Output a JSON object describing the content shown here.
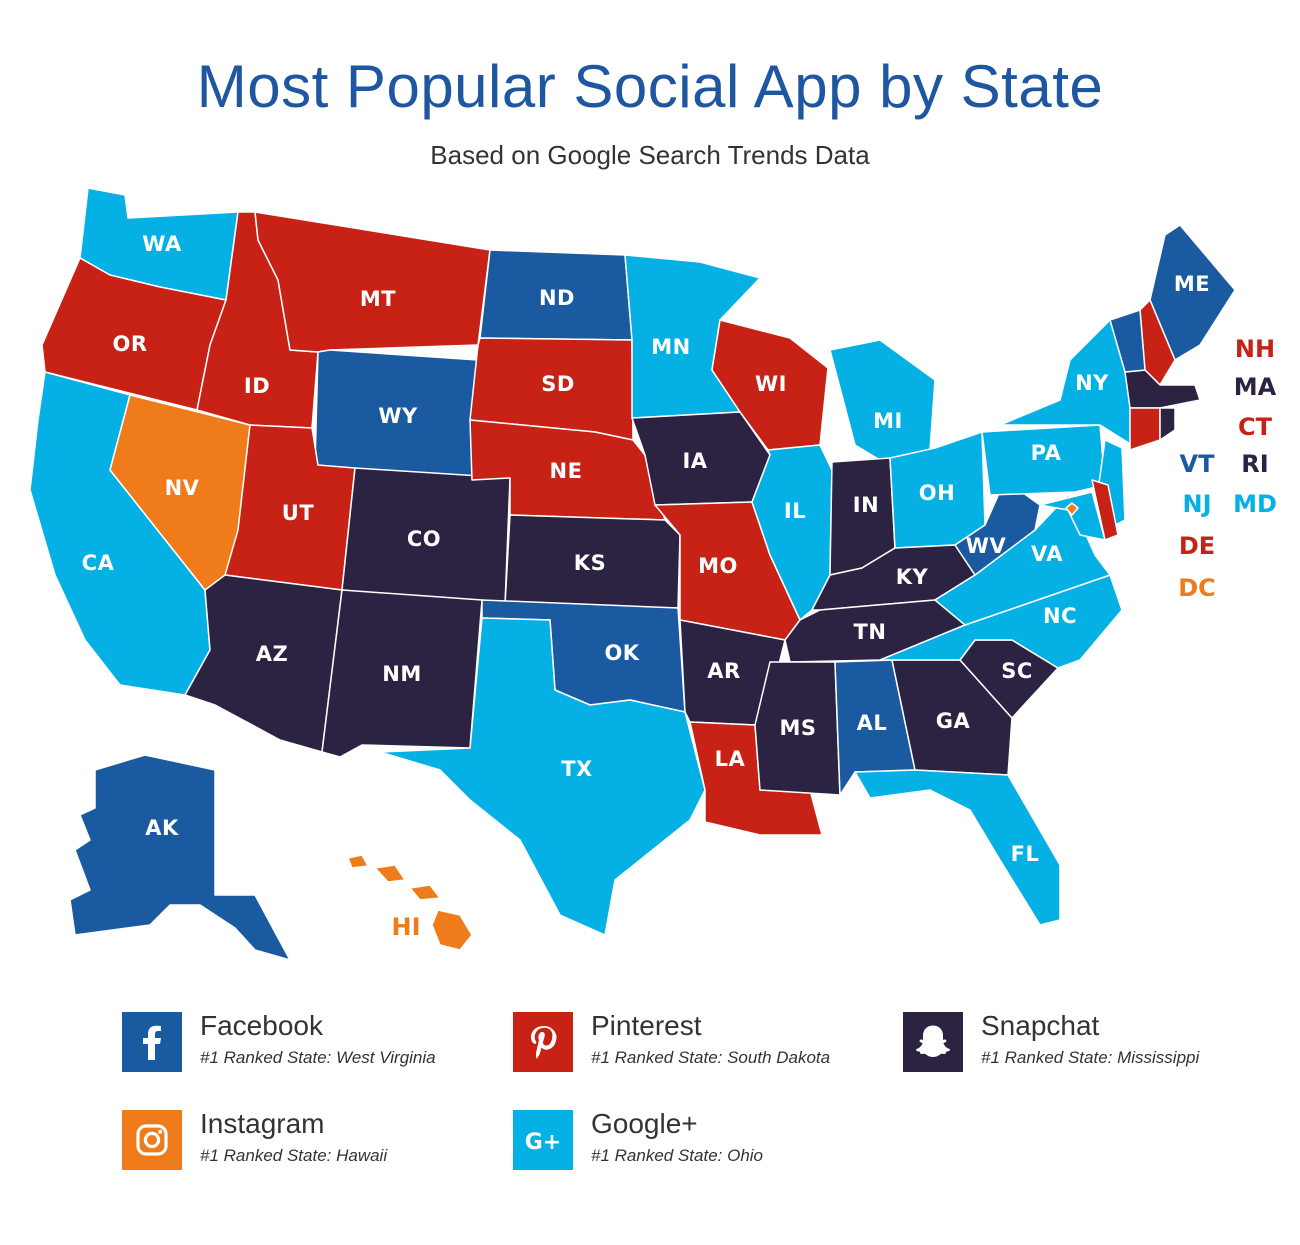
{
  "title": "Most Popular Social App by State",
  "subtitle": "Based on Google Search Trends Data",
  "colors": {
    "Facebook": "#1a5aa0",
    "Pinterest": "#c72215",
    "Snapchat": "#2c2342",
    "Instagram": "#ef7b1a",
    "Google+": "#05b0e5"
  },
  "states": [
    {
      "code": "WA",
      "app": "Google+"
    },
    {
      "code": "OR",
      "app": "Pinterest"
    },
    {
      "code": "CA",
      "app": "Google+"
    },
    {
      "code": "NV",
      "app": "Instagram"
    },
    {
      "code": "ID",
      "app": "Pinterest"
    },
    {
      "code": "MT",
      "app": "Pinterest"
    },
    {
      "code": "WY",
      "app": "Facebook"
    },
    {
      "code": "UT",
      "app": "Pinterest"
    },
    {
      "code": "AZ",
      "app": "Snapchat"
    },
    {
      "code": "CO",
      "app": "Snapchat"
    },
    {
      "code": "NM",
      "app": "Snapchat"
    },
    {
      "code": "ND",
      "app": "Facebook"
    },
    {
      "code": "SD",
      "app": "Pinterest"
    },
    {
      "code": "NE",
      "app": "Pinterest"
    },
    {
      "code": "KS",
      "app": "Snapchat"
    },
    {
      "code": "OK",
      "app": "Facebook"
    },
    {
      "code": "TX",
      "app": "Google+"
    },
    {
      "code": "MN",
      "app": "Google+"
    },
    {
      "code": "IA",
      "app": "Snapchat"
    },
    {
      "code": "MO",
      "app": "Pinterest"
    },
    {
      "code": "AR",
      "app": "Snapchat"
    },
    {
      "code": "LA",
      "app": "Pinterest"
    },
    {
      "code": "WI",
      "app": "Pinterest"
    },
    {
      "code": "IL",
      "app": "Google+"
    },
    {
      "code": "MI",
      "app": "Google+"
    },
    {
      "code": "IN",
      "app": "Snapchat"
    },
    {
      "code": "OH",
      "app": "Google+"
    },
    {
      "code": "KY",
      "app": "Snapchat"
    },
    {
      "code": "TN",
      "app": "Snapchat"
    },
    {
      "code": "MS",
      "app": "Snapchat"
    },
    {
      "code": "AL",
      "app": "Facebook"
    },
    {
      "code": "GA",
      "app": "Snapchat"
    },
    {
      "code": "FL",
      "app": "Google+"
    },
    {
      "code": "SC",
      "app": "Snapchat"
    },
    {
      "code": "NC",
      "app": "Google+"
    },
    {
      "code": "VA",
      "app": "Google+"
    },
    {
      "code": "WV",
      "app": "Facebook"
    },
    {
      "code": "PA",
      "app": "Google+"
    },
    {
      "code": "NY",
      "app": "Google+"
    },
    {
      "code": "ME",
      "app": "Facebook"
    },
    {
      "code": "AK",
      "app": "Facebook"
    },
    {
      "code": "HI",
      "app": "Instagram"
    },
    {
      "code": "NH",
      "app": "Pinterest"
    },
    {
      "code": "MA",
      "app": "Snapchat"
    },
    {
      "code": "CT",
      "app": "Pinterest"
    },
    {
      "code": "VT",
      "app": "Facebook"
    },
    {
      "code": "RI",
      "app": "Snapchat"
    },
    {
      "code": "NJ",
      "app": "Google+"
    },
    {
      "code": "MD",
      "app": "Google+"
    },
    {
      "code": "DE",
      "app": "Pinterest"
    },
    {
      "code": "DC",
      "app": "Instagram"
    }
  ],
  "legend": [
    {
      "app": "Facebook",
      "name": "Facebook",
      "note": "#1 Ranked State: West Virginia",
      "icon": "facebook-icon"
    },
    {
      "app": "Pinterest",
      "name": "Pinterest",
      "note": "#1 Ranked State: South Dakota",
      "icon": "pinterest-icon"
    },
    {
      "app": "Snapchat",
      "name": "Snapchat",
      "note": "#1 Ranked State: Mississippi",
      "icon": "snapchat-icon"
    },
    {
      "app": "Instagram",
      "name": "Instagram",
      "note": "#1 Ranked State: Hawaii",
      "icon": "instagram-icon"
    },
    {
      "app": "Google+",
      "name": "Google+",
      "note": "#1 Ranked State: Ohio",
      "icon": "google-plus-icon"
    }
  ]
}
